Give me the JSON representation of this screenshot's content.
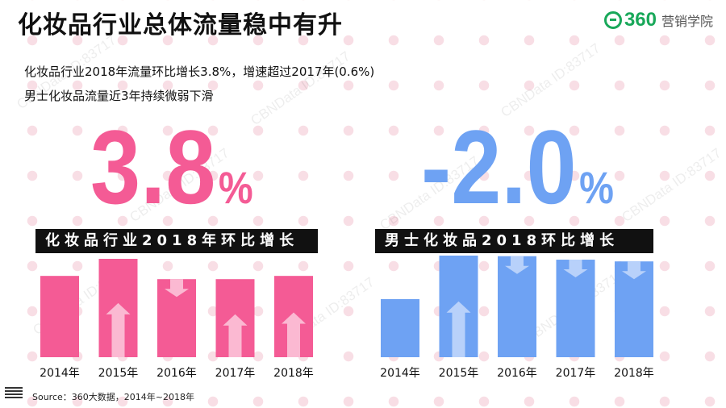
{
  "title": "化妆品行业总体流量稳中有升",
  "logo": {
    "number": "360",
    "text": "营销学院"
  },
  "watermark": "CBNData ID:83717",
  "subtitle_lines": [
    "化妆品行业2018年流量环比增长3.8%，增速超过2017年(0.6%)",
    "男士化妆品流量近3年持续微弱下滑"
  ],
  "source": "Source：360大数据，2014年~2018年",
  "colors": {
    "pink": "#f45b95",
    "blue": "#6ea2f3",
    "arrow_pink": "#fbb9d2",
    "arrow_blue": "#b8d1fa"
  },
  "chart_data": [
    {
      "type": "bar",
      "big_value": "3.8",
      "big_unit": "%",
      "title": "化妆品行业2018年环比增长",
      "categories": [
        "2014年",
        "2015年",
        "2016年",
        "2017年",
        "2018年"
      ],
      "values": [
        100,
        121,
        96,
        96,
        100
      ],
      "trends": [
        "none",
        "up",
        "down",
        "up",
        "up"
      ],
      "color": "pink"
    },
    {
      "type": "bar",
      "big_value": "-2.0",
      "big_unit": "%",
      "title": "男士化妆品2018环比增长",
      "categories": [
        "2014年",
        "2015年",
        "2016年",
        "2017年",
        "2018年"
      ],
      "values": [
        100,
        175,
        174,
        168,
        165
      ],
      "trends": [
        "none",
        "up",
        "down",
        "down",
        "down"
      ],
      "color": "blue"
    }
  ]
}
